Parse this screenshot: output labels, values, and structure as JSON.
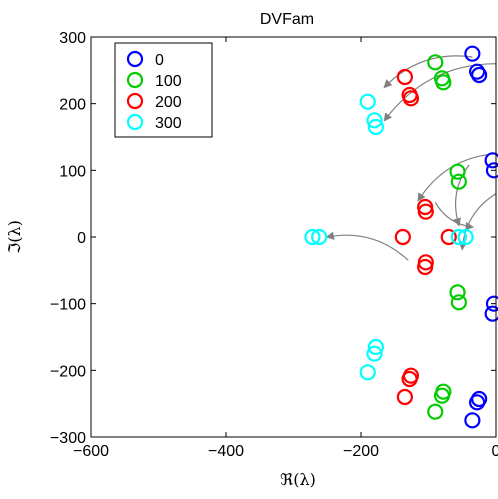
{
  "chart_data": {
    "type": "scatter",
    "title": "DVFam",
    "xlabel": "ℜ(λ)",
    "ylabel": "ℑ(λ)",
    "xlim": [
      -600,
      0
    ],
    "ylim": [
      -300,
      300
    ],
    "x_ticks": [
      "−600",
      "−400",
      "−200",
      "0"
    ],
    "y_ticks": [
      "300",
      "200",
      "100",
      "0",
      "−100",
      "−200",
      "−300"
    ],
    "x_tick_values": [
      -600,
      -400,
      -200,
      0
    ],
    "y_tick_values": [
      300,
      200,
      100,
      0,
      -100,
      -200,
      -300
    ],
    "grid": false,
    "legend_position": "top-left",
    "marker": "open-circle",
    "series": [
      {
        "name": "0",
        "color": "#0000ff",
        "x": [
          -35,
          -28,
          -25,
          -5,
          -3,
          -3,
          -5,
          -25,
          -28,
          -35
        ],
        "y": [
          275,
          248,
          243,
          115,
          100,
          -100,
          -115,
          -243,
          -248,
          -275
        ]
      },
      {
        "name": "100",
        "color": "#00cc00",
        "x": [
          -90,
          -80,
          -78,
          -57,
          -55,
          -57,
          -55,
          -78,
          -80,
          -90
        ],
        "y": [
          262,
          238,
          232,
          98,
          83,
          -83,
          -98,
          -232,
          -238,
          -262
        ]
      },
      {
        "name": "200",
        "color": "#ff0000",
        "x": [
          -135,
          -128,
          -126,
          -105,
          -104,
          -138,
          -70,
          -104,
          -105,
          -126,
          -128,
          -135
        ],
        "y": [
          240,
          213,
          208,
          45,
          38,
          0,
          0,
          -38,
          -45,
          -208,
          -213,
          -240
        ]
      },
      {
        "name": "300",
        "color": "#00ffff",
        "x": [
          -190,
          -180,
          -178,
          -272,
          -262,
          -55,
          -45,
          -178,
          -180,
          -190
        ],
        "y": [
          203,
          175,
          165,
          0,
          0,
          0,
          0,
          -165,
          -175,
          -203
        ]
      }
    ],
    "annotations": [
      {
        "type": "arrow",
        "color": "#808080",
        "from": [
          -35,
          270
        ],
        "to": [
          -165,
          225
        ]
      },
      {
        "type": "arrow",
        "color": "#808080",
        "from": [
          0,
          260
        ],
        "to": [
          -165,
          175
        ]
      },
      {
        "type": "arrow",
        "color": "#808080",
        "from": [
          0,
          125
        ],
        "to": [
          -115,
          55
        ]
      },
      {
        "type": "arrow",
        "color": "#808080",
        "from": [
          -40,
          108
        ],
        "to": [
          -55,
          18
        ]
      },
      {
        "type": "arrow",
        "color": "#808080",
        "from": [
          -90,
          52
        ],
        "to": [
          -35,
          15
        ]
      },
      {
        "type": "arrow",
        "color": "#808080",
        "from": [
          0,
          65
        ],
        "to": [
          -50,
          -18
        ]
      },
      {
        "type": "arrow",
        "color": "#808080",
        "from": [
          -130,
          -35
        ],
        "to": [
          -250,
          0
        ]
      }
    ]
  }
}
